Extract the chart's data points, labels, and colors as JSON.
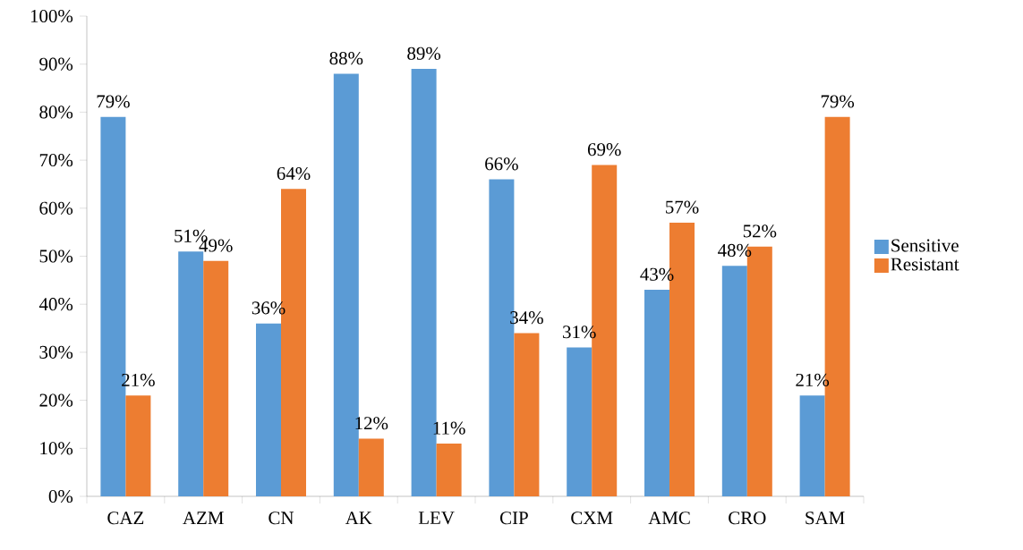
{
  "chart_data": {
    "type": "bar",
    "categories": [
      "CAZ",
      "AZM",
      "CN",
      "AK",
      "LEV",
      "CIP",
      "CXM",
      "AMC",
      "CRO",
      "SAM"
    ],
    "series": [
      {
        "name": "Sensitive",
        "color": "#5b9bd5",
        "values": [
          79,
          51,
          36,
          88,
          89,
          66,
          31,
          43,
          48,
          21
        ],
        "value_labels": [
          "79%",
          "51%",
          "36%",
          "88%",
          "89%",
          "66%",
          "31%",
          "43%",
          "48%",
          "21%"
        ]
      },
      {
        "name": "Resistant",
        "color": "#ed7d31",
        "values": [
          21,
          49,
          64,
          12,
          11,
          34,
          69,
          57,
          52,
          79
        ],
        "value_labels": [
          "21%",
          "49%",
          "64%",
          "12%",
          "11%",
          "34%",
          "69%",
          "57%",
          "52%",
          "79%"
        ]
      }
    ],
    "ylim": [
      0,
      100
    ],
    "yticks": [
      {
        "value": 0,
        "label": "0%"
      },
      {
        "value": 10,
        "label": "10%"
      },
      {
        "value": 20,
        "label": "20%"
      },
      {
        "value": 30,
        "label": "30%"
      },
      {
        "value": 40,
        "label": "40%"
      },
      {
        "value": 50,
        "label": "50%"
      },
      {
        "value": 60,
        "label": "60%"
      },
      {
        "value": 70,
        "label": "70%"
      },
      {
        "value": 80,
        "label": "80%"
      },
      {
        "value": 90,
        "label": "90%"
      },
      {
        "value": 100,
        "label": "100%"
      }
    ],
    "legend": "right"
  }
}
